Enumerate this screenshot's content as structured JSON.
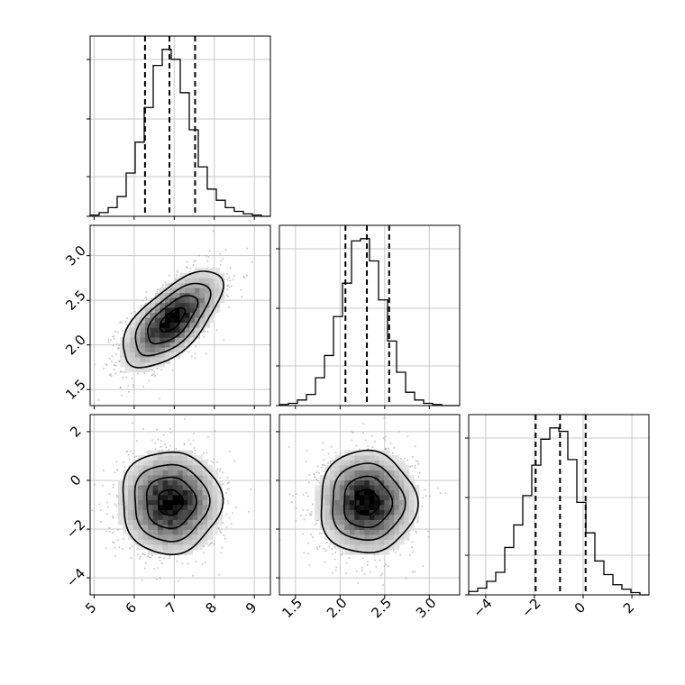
{
  "chart_data": {
    "type": "corner",
    "grid": true,
    "parameters": [
      {
        "range": [
          4.9,
          9.4
        ],
        "ticks": [
          5,
          6,
          7,
          8,
          9
        ],
        "tick_labels": [
          "5",
          "6",
          "7",
          "8",
          "9"
        ],
        "quantiles": [
          6.27,
          6.88,
          7.52
        ]
      },
      {
        "range": [
          1.32,
          3.34
        ],
        "ticks": [
          1.5,
          2.0,
          2.5,
          3.0
        ],
        "tick_labels": [
          "1.5",
          "2.0",
          "2.5",
          "3.0"
        ],
        "quantiles": [
          2.06,
          2.3,
          2.55
        ]
      },
      {
        "range": [
          -4.7,
          2.7
        ],
        "ticks": [
          -4,
          -2,
          0,
          2
        ],
        "tick_labels": [
          "−4",
          "−2",
          "0",
          "2"
        ],
        "quantiles": [
          -1.95,
          -0.95,
          0.1
        ]
      }
    ],
    "histograms": [
      {
        "bin_edges": [
          4.9,
          5.125,
          5.35,
          5.575,
          5.8,
          6.025,
          6.25,
          6.475,
          6.7,
          6.925,
          7.15,
          7.375,
          7.6,
          7.825,
          8.05,
          8.275,
          8.5,
          8.725,
          8.95,
          9.175,
          9.4
        ],
        "counts": [
          1,
          3,
          7,
          16,
          35,
          60,
          88,
          122,
          135,
          127,
          100,
          70,
          40,
          22,
          13,
          7,
          4,
          2,
          1,
          0
        ]
      },
      {
        "bin_edges": [
          1.32,
          1.421,
          1.522,
          1.623,
          1.724,
          1.825,
          1.926,
          2.027,
          2.128,
          2.229,
          2.33,
          2.431,
          2.532,
          2.633,
          2.734,
          2.835,
          2.936,
          3.037,
          3.138,
          3.239,
          3.34
        ],
        "counts": [
          1,
          2,
          5,
          10,
          25,
          45,
          80,
          110,
          148,
          150,
          130,
          95,
          58,
          30,
          12,
          5,
          2,
          1,
          0,
          0
        ]
      },
      {
        "bin_edges": [
          -4.7,
          -4.33,
          -3.96,
          -3.59,
          -3.22,
          -2.85,
          -2.48,
          -2.11,
          -1.74,
          -1.37,
          -1.0,
          -0.63,
          -0.26,
          0.11,
          0.48,
          0.85,
          1.22,
          1.59,
          1.96,
          2.33,
          2.7
        ],
        "counts": [
          3,
          6,
          12,
          20,
          42,
          62,
          88,
          115,
          138,
          148,
          145,
          120,
          82,
          55,
          30,
          18,
          9,
          5,
          2,
          0
        ]
      }
    ],
    "panels_2d": [
      {
        "x_param": 0,
        "y_param": 1,
        "mean": [
          6.95,
          2.28
        ],
        "sd": [
          0.62,
          0.27
        ],
        "corr": 0.65
      },
      {
        "x_param": 0,
        "y_param": 2,
        "mean": [
          6.9,
          -0.9
        ],
        "sd": [
          0.62,
          1.05
        ],
        "corr": 0.0
      },
      {
        "x_param": 1,
        "y_param": 2,
        "mean": [
          2.3,
          -0.9
        ],
        "sd": [
          0.27,
          1.05
        ],
        "corr": 0.0
      }
    ],
    "contour_levels_sigma": [
      0.5,
      1.0,
      1.5,
      2.0
    ]
  }
}
